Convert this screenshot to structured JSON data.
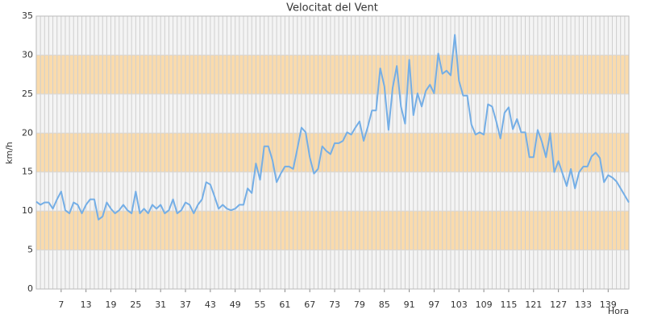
{
  "chart_data": {
    "type": "line",
    "title": "Velocitat del Vent",
    "ylabel": "km/h",
    "xlabel": "Hora",
    "x": [
      1,
      2,
      3,
      4,
      5,
      6,
      7,
      8,
      9,
      10,
      11,
      12,
      13,
      14,
      15,
      16,
      17,
      18,
      19,
      20,
      21,
      22,
      23,
      24,
      25,
      26,
      27,
      28,
      29,
      30,
      31,
      32,
      33,
      34,
      35,
      36,
      37,
      38,
      39,
      40,
      41,
      42,
      43,
      44,
      45,
      46,
      47,
      48,
      49,
      50,
      51,
      52,
      53,
      54,
      55,
      56,
      57,
      58,
      59,
      60,
      61,
      62,
      63,
      64,
      65,
      66,
      67,
      68,
      69,
      70,
      71,
      72,
      73,
      74,
      75,
      76,
      77,
      78,
      79,
      80,
      81,
      82,
      83,
      84,
      85,
      86,
      87,
      88,
      89,
      90,
      91,
      92,
      93,
      94,
      95,
      96,
      97,
      98,
      99,
      100,
      101,
      102,
      103,
      104,
      105,
      106,
      107,
      108,
      109,
      110,
      111,
      112,
      113,
      114,
      115,
      116,
      117,
      118,
      119,
      120,
      121,
      122,
      123,
      124,
      125,
      126,
      127,
      128,
      129,
      130,
      131,
      132,
      133,
      134,
      135,
      136,
      137,
      138,
      139,
      140,
      141,
      142,
      143,
      144
    ],
    "series": [
      {
        "name": "km/h",
        "color": "#74aee6",
        "values": [
          11.2,
          10.8,
          11.1,
          11.1,
          10.3,
          11.5,
          12.5,
          10.1,
          9.7,
          11.1,
          10.8,
          9.7,
          10.8,
          11.5,
          11.5,
          8.9,
          9.3,
          11.1,
          10.3,
          9.7,
          10.1,
          10.8,
          10.1,
          9.7,
          12.5,
          9.7,
          10.3,
          9.7,
          10.8,
          10.3,
          10.8,
          9.7,
          10.1,
          11.5,
          9.7,
          10.1,
          11.1,
          10.8,
          9.7,
          10.8,
          11.5,
          13.7,
          13.4,
          11.9,
          10.3,
          10.8,
          10.3,
          10.1,
          10.3,
          10.8,
          10.8,
          12.9,
          12.3,
          16.1,
          14.0,
          18.3,
          18.3,
          16.5,
          13.7,
          14.8,
          15.7,
          15.7,
          15.4,
          18.0,
          20.7,
          20.1,
          16.9,
          14.8,
          15.4,
          18.3,
          17.7,
          17.3,
          18.7,
          18.7,
          19.0,
          20.1,
          19.8,
          20.7,
          21.5,
          19.0,
          20.8,
          22.9,
          22.9,
          28.3,
          26.0,
          20.4,
          25.8,
          28.6,
          23.4,
          21.2,
          29.4,
          22.3,
          25.1,
          23.4,
          25.4,
          26.2,
          25.1,
          30.2,
          27.6,
          28.0,
          27.4,
          32.6,
          26.7,
          24.8,
          24.8,
          21.1,
          19.8,
          20.1,
          19.8,
          23.7,
          23.4,
          21.5,
          19.3,
          22.6,
          23.3,
          20.5,
          21.8,
          20.1,
          20.1,
          16.9,
          16.9,
          20.4,
          18.9,
          16.9,
          20.0,
          15.0,
          16.4,
          14.8,
          13.2,
          15.4,
          12.9,
          15.0,
          15.7,
          15.7,
          17.0,
          17.5,
          16.8,
          13.7,
          14.6,
          14.3,
          13.8,
          12.9,
          12.0,
          11.1
        ]
      }
    ],
    "xlim": [
      1,
      144
    ],
    "xticks": [
      7,
      13,
      19,
      25,
      31,
      37,
      43,
      49,
      55,
      61,
      67,
      73,
      79,
      85,
      91,
      97,
      103,
      109,
      115,
      121,
      127,
      133,
      139
    ],
    "ylim": [
      0,
      35
    ],
    "yticks": [
      0,
      5,
      10,
      15,
      20,
      25,
      30,
      35
    ],
    "band_colors": [
      "#f4f4f4",
      "#fadbac"
    ],
    "grid": true
  }
}
